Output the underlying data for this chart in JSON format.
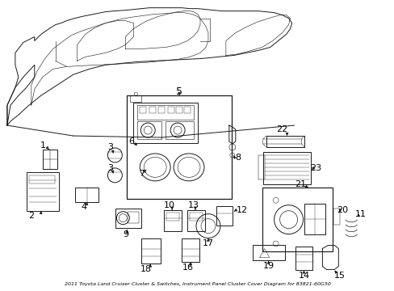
{
  "title": "2011 Toyota Land Cruiser Cluster & Switches, Instrument Panel Cluster Cover Diagram for 83821-60G50",
  "background_color": "#ffffff",
  "line_color": "#1a1a1a",
  "text_color": "#000000",
  "figsize": [
    4.89,
    3.6
  ],
  "dpi": 100
}
